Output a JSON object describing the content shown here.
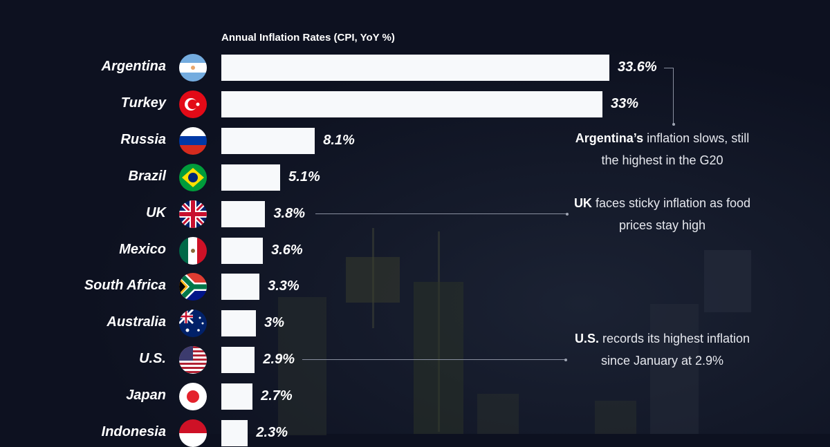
{
  "chart_data": {
    "type": "bar",
    "orientation": "horizontal",
    "title": "Annual Inflation Rates (CPI, YoY %)",
    "xlabel": "",
    "ylabel": "",
    "xlim": [
      0,
      34
    ],
    "grid": false,
    "categories": [
      "Argentina",
      "Turkey",
      "Russia",
      "Brazil",
      "UK",
      "Mexico",
      "South Africa",
      "Australia",
      "U.S.",
      "Japan",
      "Indonesia"
    ],
    "values": [
      33.6,
      33,
      8.1,
      5.1,
      3.8,
      3.6,
      3.3,
      3,
      2.9,
      2.7,
      2.3
    ],
    "value_labels": [
      "33.6%",
      "33%",
      "8.1%",
      "5.1%",
      "3.8%",
      "3.6%",
      "3.3%",
      "3%",
      "2.9%",
      "2.7%",
      "2.3%"
    ],
    "flags": [
      "argentina-flag",
      "turkey-flag",
      "russia-flag",
      "brazil-flag",
      "uk-flag",
      "mexico-flag",
      "south-africa-flag",
      "australia-flag",
      "us-flag",
      "japan-flag",
      "indonesia-flag"
    ],
    "annotations": [
      {
        "bold": "Argentina’s",
        "text": " inflation slows, still the highest in the G20",
        "target": "Argentina"
      },
      {
        "bold": "UK",
        "text": " faces sticky inflation as food prices stay high",
        "target": "UK"
      },
      {
        "bold": "U.S.",
        "text": " records its highest inflation since January at 2.9%",
        "target": "U.S."
      }
    ]
  },
  "colors": {
    "background": "#0d1120",
    "bar": "#f7f9fb",
    "text": "#ffffff"
  }
}
